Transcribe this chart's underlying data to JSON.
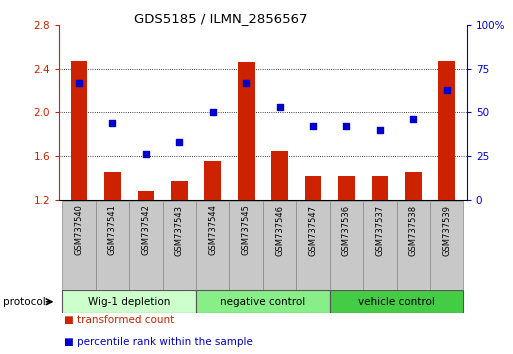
{
  "title": "GDS5185 / ILMN_2856567",
  "samples": [
    "GSM737540",
    "GSM737541",
    "GSM737542",
    "GSM737543",
    "GSM737544",
    "GSM737545",
    "GSM737546",
    "GSM737547",
    "GSM737536",
    "GSM737537",
    "GSM737538",
    "GSM737539"
  ],
  "transformed_count": [
    2.47,
    1.46,
    1.28,
    1.37,
    1.56,
    2.46,
    1.65,
    1.42,
    1.42,
    1.42,
    1.46,
    2.47
  ],
  "percentile_rank": [
    67,
    44,
    26,
    33,
    50,
    67,
    53,
    42,
    42,
    40,
    46,
    63
  ],
  "bar_color": "#cc2200",
  "dot_color": "#0000cc",
  "ylim_left": [
    1.2,
    2.8
  ],
  "ylim_right": [
    0,
    100
  ],
  "yticks_left": [
    1.2,
    1.6,
    2.0,
    2.4,
    2.8
  ],
  "yticks_right": [
    0,
    25,
    50,
    75,
    100
  ],
  "ytick_labels_right": [
    "0",
    "25",
    "50",
    "75",
    "100%"
  ],
  "grid_values": [
    1.6,
    2.0,
    2.4
  ],
  "groups": [
    {
      "label": "Wig-1 depletion",
      "start": 0,
      "end": 4,
      "color": "#ccffcc"
    },
    {
      "label": "negative control",
      "start": 4,
      "end": 8,
      "color": "#88ee88"
    },
    {
      "label": "vehicle control",
      "start": 8,
      "end": 12,
      "color": "#44cc44"
    }
  ],
  "protocol_label": "protocol",
  "legend_items": [
    {
      "label": "transformed count",
      "color": "#cc2200"
    },
    {
      "label": "percentile rank within the sample",
      "color": "#0000cc"
    }
  ],
  "bar_width": 0.5,
  "plot_bg": "#ffffff",
  "tick_area_bg": "#c8c8c8"
}
